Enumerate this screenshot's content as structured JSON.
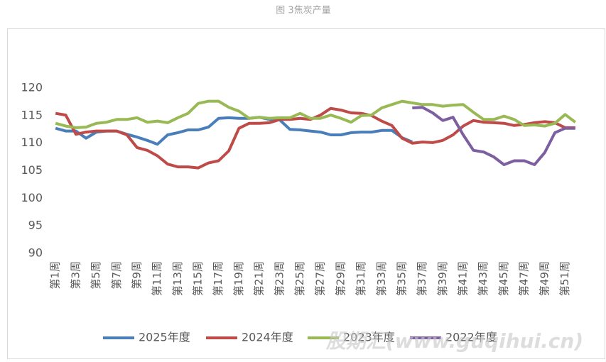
{
  "chart_data": {
    "type": "line",
    "title": "图 3焦炭产量",
    "watermark": "股期汇(www.guqihui.cn)",
    "categories": [
      "第1周",
      null,
      "第3周",
      null,
      "第5周",
      null,
      "第7周",
      null,
      "第9周",
      null,
      "第11周",
      null,
      "第13周",
      null,
      "第15周",
      null,
      "第17周",
      null,
      "第19周",
      null,
      "第21周",
      null,
      "第23周",
      null,
      "第25周",
      null,
      "第27周",
      null,
      "第29周",
      null,
      "第31周",
      null,
      "第33周",
      null,
      "第35周",
      null,
      "第37周",
      null,
      "第39周",
      null,
      "第41周",
      null,
      "第43周",
      null,
      "第45周",
      null,
      "第47周",
      null,
      "第49周",
      null,
      "第51周",
      null
    ],
    "series": [
      {
        "name": "2025年度",
        "color": "#4a7ebb",
        "values": [
          112.7,
          112.2,
          112.2,
          110.9,
          112.0,
          112.2,
          112.2,
          111.6,
          111.1,
          110.5,
          109.8,
          111.5,
          111.9,
          112.4,
          112.4,
          112.9,
          114.5,
          114.6,
          114.5,
          114.5,
          114.7,
          114.3,
          114.2,
          112.5,
          112.4,
          112.2,
          112.0,
          111.5,
          111.5,
          111.9,
          112.0,
          112.0,
          112.3,
          112.3,
          111.0,
          110.2,
          null,
          null,
          null,
          null,
          null,
          null,
          null,
          null,
          null,
          null,
          null,
          null,
          null,
          null,
          null,
          null
        ]
      },
      {
        "name": "2024年度",
        "color": "#be4b48",
        "values": [
          115.4,
          115.1,
          111.6,
          112.0,
          112.2,
          112.2,
          112.2,
          111.5,
          109.2,
          108.7,
          107.7,
          106.2,
          105.7,
          105.7,
          105.5,
          106.4,
          106.8,
          108.6,
          112.7,
          113.6,
          113.6,
          113.7,
          114.3,
          114.3,
          114.5,
          114.3,
          115.1,
          116.3,
          116.0,
          115.5,
          115.4,
          115.0,
          114.0,
          113.2,
          110.9,
          110.0,
          110.2,
          110.1,
          110.5,
          111.5,
          113.1,
          114.1,
          113.8,
          113.7,
          113.6,
          113.2,
          113.4,
          113.7,
          113.9,
          113.7,
          112.8,
          112.8
        ]
      },
      {
        "name": "2023年度",
        "color": "#98b954",
        "values": [
          113.6,
          113.1,
          112.8,
          112.9,
          113.6,
          113.8,
          114.3,
          114.3,
          114.6,
          113.8,
          114.0,
          113.7,
          114.6,
          115.4,
          117.2,
          117.6,
          117.6,
          116.5,
          115.8,
          114.5,
          114.7,
          114.5,
          114.6,
          114.6,
          115.4,
          114.5,
          114.5,
          115.1,
          114.5,
          113.8,
          115.0,
          115.1,
          116.4,
          117.0,
          117.6,
          117.3,
          117.0,
          117.0,
          116.7,
          116.9,
          117.0,
          115.6,
          114.3,
          114.3,
          114.9,
          114.3,
          113.2,
          113.3,
          113.1,
          113.6,
          115.2,
          113.8
        ]
      },
      {
        "name": "2022年度",
        "color": "#7d5fa0",
        "values": [
          null,
          null,
          null,
          null,
          null,
          null,
          null,
          null,
          null,
          null,
          null,
          null,
          null,
          null,
          null,
          null,
          null,
          null,
          null,
          null,
          null,
          null,
          null,
          null,
          null,
          null,
          null,
          null,
          null,
          null,
          null,
          null,
          null,
          null,
          null,
          116.4,
          116.5,
          115.5,
          114.1,
          114.7,
          111.5,
          108.7,
          108.4,
          107.5,
          106.1,
          106.8,
          106.8,
          106.1,
          108.3,
          111.9,
          112.7,
          112.7
        ]
      }
    ],
    "ylim": [
      90,
      120
    ],
    "yticks": [
      90,
      95,
      100,
      105,
      110,
      115,
      120
    ],
    "grid": false,
    "legend": "bottom"
  }
}
